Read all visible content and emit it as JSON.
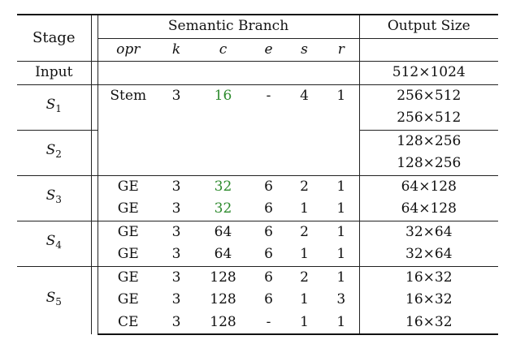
{
  "header": {
    "stage": "Stage",
    "branch": "Semantic Branch",
    "output": "Output Size",
    "opr": "opr",
    "k": "k",
    "c": "c",
    "e": "e",
    "s": "s",
    "r": "r"
  },
  "input": {
    "label": "Input",
    "output": "512×1024"
  },
  "stages": {
    "s1": {
      "letter": "S",
      "sub": "1"
    },
    "s2": {
      "letter": "S",
      "sub": "2"
    },
    "s3": {
      "letter": "S",
      "sub": "3"
    },
    "s4": {
      "letter": "S",
      "sub": "4"
    },
    "s5": {
      "letter": "S",
      "sub": "5"
    }
  },
  "rows": {
    "s1r1": {
      "opr": "Stem",
      "k": "3",
      "c": "16",
      "e": "-",
      "s": "4",
      "r": "1",
      "out": "256×512"
    },
    "s1r2": {
      "out": "256×512"
    },
    "s2r1": {
      "out": "128×256"
    },
    "s2r2": {
      "out": "128×256"
    },
    "s3r1": {
      "opr": "GE",
      "k": "3",
      "c": "32",
      "e": "6",
      "s": "2",
      "r": "1",
      "out": "64×128"
    },
    "s3r2": {
      "opr": "GE",
      "k": "3",
      "c": "32",
      "e": "6",
      "s": "1",
      "r": "1",
      "out": "64×128"
    },
    "s4r1": {
      "opr": "GE",
      "k": "3",
      "c": "64",
      "e": "6",
      "s": "2",
      "r": "1",
      "out": "32×64"
    },
    "s4r2": {
      "opr": "GE",
      "k": "3",
      "c": "64",
      "e": "6",
      "s": "1",
      "r": "1",
      "out": "32×64"
    },
    "s5r1": {
      "opr": "GE",
      "k": "3",
      "c": "128",
      "e": "6",
      "s": "2",
      "r": "1",
      "out": "16×32"
    },
    "s5r2": {
      "opr": "GE",
      "k": "3",
      "c": "128",
      "e": "6",
      "s": "1",
      "r": "3",
      "out": "16×32"
    },
    "s5r3": {
      "opr": "CE",
      "k": "3",
      "c": "128",
      "e": "-",
      "s": "1",
      "r": "1",
      "out": "16×32"
    }
  },
  "colors": {
    "highlight": "#2e8b2e",
    "text": "#111111",
    "rule": "#222222"
  }
}
